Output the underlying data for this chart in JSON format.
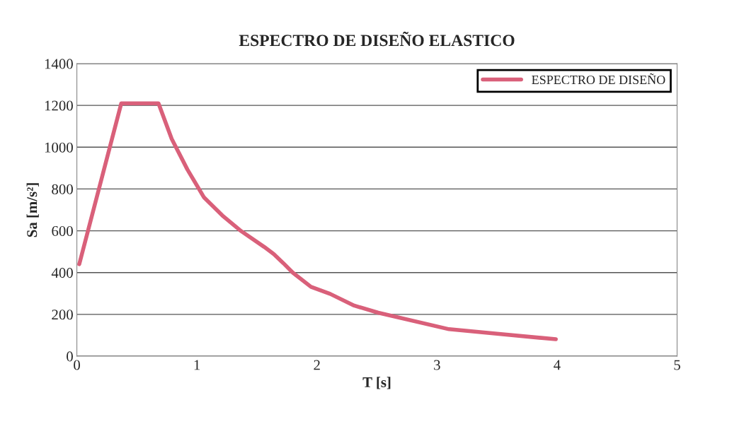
{
  "chart_data": {
    "type": "line",
    "title": "ESPECTRO DE DISEÑO ELASTICO",
    "xlabel": "T [s]",
    "ylabel": "Sa [m/s²]",
    "x": [
      0.02,
      0.37,
      0.68,
      0.79,
      0.92,
      1.06,
      1.22,
      1.36,
      1.56,
      1.64,
      1.72,
      1.8,
      1.95,
      2.11,
      2.31,
      2.51,
      3.1,
      3.5,
      3.99
    ],
    "series": [
      {
        "name": "ESPECTRO DE DISEÑO",
        "color": "#d9607a",
        "values": [
          440,
          1210,
          1210,
          1040,
          894,
          759,
          669,
          602,
          523,
          489,
          445,
          399,
          332,
          298,
          242,
          208,
          129,
          107,
          81
        ]
      }
    ],
    "xlim": [
      0,
      5
    ],
    "xticks": [
      0,
      1,
      2,
      3,
      4,
      5
    ],
    "ylim": [
      0,
      1400
    ],
    "yticks": [
      0,
      200,
      400,
      600,
      800,
      1000,
      1200,
      1400
    ],
    "grid": "y",
    "legend": "top right",
    "marker": "none",
    "line_style": "solid"
  }
}
